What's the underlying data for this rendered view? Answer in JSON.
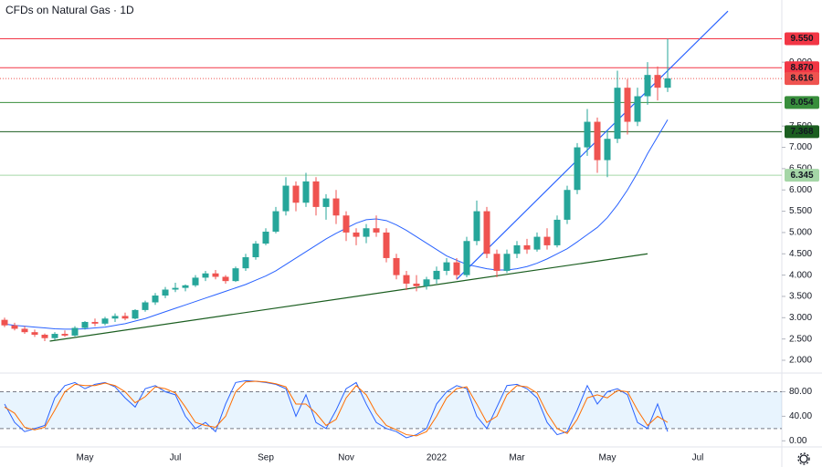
{
  "header": {
    "title": "CFDs on Natural Gas · 1D"
  },
  "chart_data": [
    {
      "type": "candlestick",
      "categories": [
        null,
        null,
        null,
        null,
        null,
        null,
        null,
        null,
        "May",
        null,
        null,
        null,
        null,
        null,
        null,
        null,
        null,
        "Jul",
        null,
        null,
        null,
        null,
        null,
        null,
        null,
        null,
        "Sep",
        null,
        null,
        null,
        null,
        null,
        null,
        null,
        "Nov",
        null,
        null,
        null,
        null,
        null,
        null,
        null,
        null,
        "2022",
        null,
        null,
        null,
        null,
        null,
        null,
        null,
        "Mar",
        null,
        null,
        null,
        null,
        null,
        null,
        null,
        null,
        "May",
        null,
        null,
        null,
        null,
        null,
        null,
        null,
        null,
        "Jul"
      ],
      "open": [
        2.95,
        2.82,
        2.74,
        2.66,
        2.6,
        2.52,
        2.62,
        2.58,
        2.76,
        2.9,
        2.86,
        2.98,
        3.04,
        2.98,
        3.18,
        3.36,
        3.52,
        3.66,
        3.7,
        3.76,
        3.94,
        4.04,
        3.96,
        3.86,
        4.16,
        4.42,
        4.74,
        5.02,
        5.5,
        6.1,
        5.7,
        6.2,
        5.6,
        5.8,
        5.4,
        5.0,
        4.9,
        5.1,
        5.0,
        4.4,
        4.0,
        3.8,
        3.74,
        3.9,
        4.1,
        4.3,
        4.0,
        4.8,
        5.5,
        4.5,
        4.1,
        4.5,
        4.7,
        4.6,
        4.9,
        4.7,
        5.3,
        6.0,
        7.0,
        7.6,
        6.7,
        7.2,
        8.4,
        7.6,
        8.2,
        8.7,
        8.4,
        null,
        null,
        null
      ],
      "high": [
        3.0,
        2.88,
        2.8,
        2.72,
        2.63,
        2.66,
        2.7,
        2.8,
        2.92,
        2.98,
        3.02,
        3.1,
        3.12,
        3.2,
        3.4,
        3.58,
        3.72,
        3.82,
        3.78,
        4.0,
        4.1,
        4.12,
        4.0,
        4.2,
        4.5,
        4.8,
        5.1,
        5.6,
        6.3,
        6.2,
        6.4,
        6.3,
        5.9,
        6.0,
        5.5,
        5.1,
        5.2,
        5.4,
        5.1,
        4.5,
        4.1,
        4.0,
        3.96,
        4.2,
        4.4,
        4.4,
        4.9,
        5.75,
        5.6,
        4.6,
        4.6,
        4.8,
        4.85,
        5.0,
        5.1,
        5.4,
        6.1,
        7.1,
        7.9,
        7.7,
        7.4,
        8.8,
        8.6,
        8.4,
        9.0,
        8.9,
        9.55,
        null,
        null,
        null
      ],
      "low": [
        2.78,
        2.7,
        2.62,
        2.55,
        2.45,
        2.48,
        2.55,
        2.56,
        2.72,
        2.8,
        2.82,
        2.9,
        2.94,
        2.96,
        3.14,
        3.3,
        3.46,
        3.6,
        3.62,
        3.72,
        3.86,
        3.9,
        3.8,
        3.84,
        4.1,
        4.36,
        4.7,
        4.98,
        5.4,
        5.5,
        5.6,
        5.4,
        5.3,
        5.2,
        4.8,
        4.7,
        4.75,
        4.9,
        4.3,
        3.9,
        3.65,
        3.62,
        3.66,
        3.8,
        4.0,
        3.9,
        3.95,
        4.7,
        4.4,
        3.95,
        4.05,
        4.4,
        4.5,
        4.55,
        4.6,
        4.65,
        5.2,
        5.9,
        6.8,
        6.4,
        6.3,
        7.1,
        7.3,
        7.5,
        8.0,
        8.1,
        8.3,
        null,
        null,
        null
      ],
      "close": [
        2.82,
        2.74,
        2.66,
        2.6,
        2.52,
        2.62,
        2.58,
        2.76,
        2.9,
        2.86,
        2.98,
        3.04,
        2.98,
        3.18,
        3.36,
        3.52,
        3.66,
        3.7,
        3.76,
        3.94,
        4.04,
        3.96,
        3.86,
        4.16,
        4.42,
        4.74,
        5.02,
        5.5,
        6.1,
        5.7,
        6.2,
        5.6,
        5.8,
        5.4,
        5.0,
        4.9,
        5.1,
        5.0,
        4.4,
        4.0,
        3.8,
        3.74,
        3.9,
        4.1,
        4.3,
        4.0,
        4.8,
        5.5,
        4.5,
        4.1,
        4.5,
        4.7,
        4.6,
        4.9,
        4.7,
        5.3,
        6.0,
        7.0,
        7.6,
        6.7,
        7.2,
        8.4,
        7.6,
        8.2,
        8.7,
        8.4,
        8.62,
        null,
        null,
        null
      ],
      "up_color": "#26a69a",
      "down_color": "#ef5350",
      "ma": {
        "color": "#2962ff",
        "values": [
          2.85,
          2.82,
          2.8,
          2.78,
          2.76,
          2.74,
          2.73,
          2.73,
          2.74,
          2.76,
          2.78,
          2.82,
          2.86,
          2.92,
          2.98,
          3.06,
          3.14,
          3.22,
          3.3,
          3.38,
          3.46,
          3.54,
          3.62,
          3.7,
          3.78,
          3.88,
          3.98,
          4.1,
          4.25,
          4.4,
          4.55,
          4.7,
          4.85,
          4.98,
          5.1,
          5.22,
          5.3,
          5.32,
          5.28,
          5.18,
          5.05,
          4.9,
          4.75,
          4.6,
          4.45,
          4.35,
          4.25,
          4.2,
          4.15,
          4.12,
          4.12,
          4.15,
          4.2,
          4.28,
          4.38,
          4.5,
          4.62,
          4.78,
          4.95,
          5.12,
          5.35,
          5.65,
          6.0,
          6.4,
          6.85,
          7.25,
          7.65,
          null,
          null,
          null
        ]
      },
      "levels": [
        {
          "value": 9.55,
          "label": "9.550",
          "color": "#f23645",
          "text_color": "#ffffff",
          "style": "solid"
        },
        {
          "value": 8.87,
          "label": "8.870",
          "color": "#f23645",
          "text_color": "#ffffff",
          "style": "solid"
        },
        {
          "value": 8.616,
          "label": "8.616",
          "color": "#ef5350",
          "text_color": "#ffffff",
          "style": "dotted"
        },
        {
          "value": 8.054,
          "label": "8.054",
          "color": "#388e3c",
          "text_color": "#ffffff",
          "style": "solid"
        },
        {
          "value": 7.368,
          "label": "7.368",
          "color": "#1b5e20",
          "text_color": "#ffffff",
          "style": "solid"
        },
        {
          "value": 6.345,
          "label": "6.345",
          "color": "#a5d6a7",
          "text_color": "#131722",
          "style": "solid"
        }
      ],
      "trendlines": [
        {
          "color": "#1b5e20",
          "points": [
            [
              4.5,
              2.45
            ],
            [
              64,
              4.5
            ]
          ]
        },
        {
          "color": "#2962ff",
          "points": [
            [
              45,
              3.9
            ],
            [
              72,
              10.2
            ]
          ]
        }
      ],
      "ylim": [
        1.7,
        10.46
      ],
      "yticks": [
        {
          "value": 2,
          "label": "2.000"
        },
        {
          "value": 2.5,
          "label": "2.500"
        },
        {
          "value": 3,
          "label": "3.000"
        },
        {
          "value": 3.5,
          "label": "3.500"
        },
        {
          "value": 4,
          "label": "4.000"
        },
        {
          "value": 4.5,
          "label": "4.500"
        },
        {
          "value": 5,
          "label": "5.000"
        },
        {
          "value": 5.5,
          "label": "5.500"
        },
        {
          "value": 6,
          "label": "6.000"
        },
        {
          "value": 6.5,
          "label": "6.500"
        },
        {
          "value": 7,
          "label": "7.000"
        },
        {
          "value": 7.5,
          "label": "7.500"
        },
        {
          "value": 9,
          "label": "9.000"
        }
      ]
    },
    {
      "type": "line",
      "series": [
        {
          "color": "#2962ff",
          "values": [
            60,
            30,
            15,
            20,
            25,
            70,
            90,
            95,
            85,
            92,
            95,
            88,
            70,
            55,
            85,
            90,
            80,
            75,
            40,
            20,
            30,
            15,
            60,
            95,
            98,
            97,
            95,
            92,
            85,
            40,
            75,
            30,
            20,
            50,
            85,
            95,
            60,
            30,
            20,
            15,
            5,
            10,
            20,
            60,
            80,
            90,
            85,
            40,
            20,
            55,
            90,
            92,
            85,
            70,
            30,
            10,
            15,
            50,
            90,
            60,
            80,
            85,
            75,
            30,
            20,
            60,
            15,
            null,
            null,
            null
          ]
        },
        {
          "color": "#ff6d00",
          "values": [
            55,
            45,
            22,
            18,
            22,
            50,
            80,
            92,
            90,
            90,
            94,
            90,
            80,
            62,
            72,
            88,
            85,
            78,
            55,
            30,
            25,
            22,
            40,
            80,
            96,
            97,
            96,
            93,
            88,
            60,
            60,
            45,
            25,
            35,
            70,
            90,
            75,
            45,
            25,
            18,
            10,
            8,
            15,
            40,
            70,
            85,
            88,
            60,
            30,
            40,
            75,
            90,
            88,
            78,
            45,
            20,
            12,
            35,
            70,
            75,
            70,
            82,
            80,
            50,
            25,
            40,
            30,
            null,
            null,
            null
          ]
        }
      ],
      "band": [
        20,
        80
      ],
      "ylim": [
        -7,
        106
      ],
      "yticks": [
        {
          "value": 0,
          "label": "0.00"
        },
        {
          "value": 40,
          "label": "40.00"
        },
        {
          "value": 80,
          "label": "80.00"
        }
      ]
    }
  ]
}
